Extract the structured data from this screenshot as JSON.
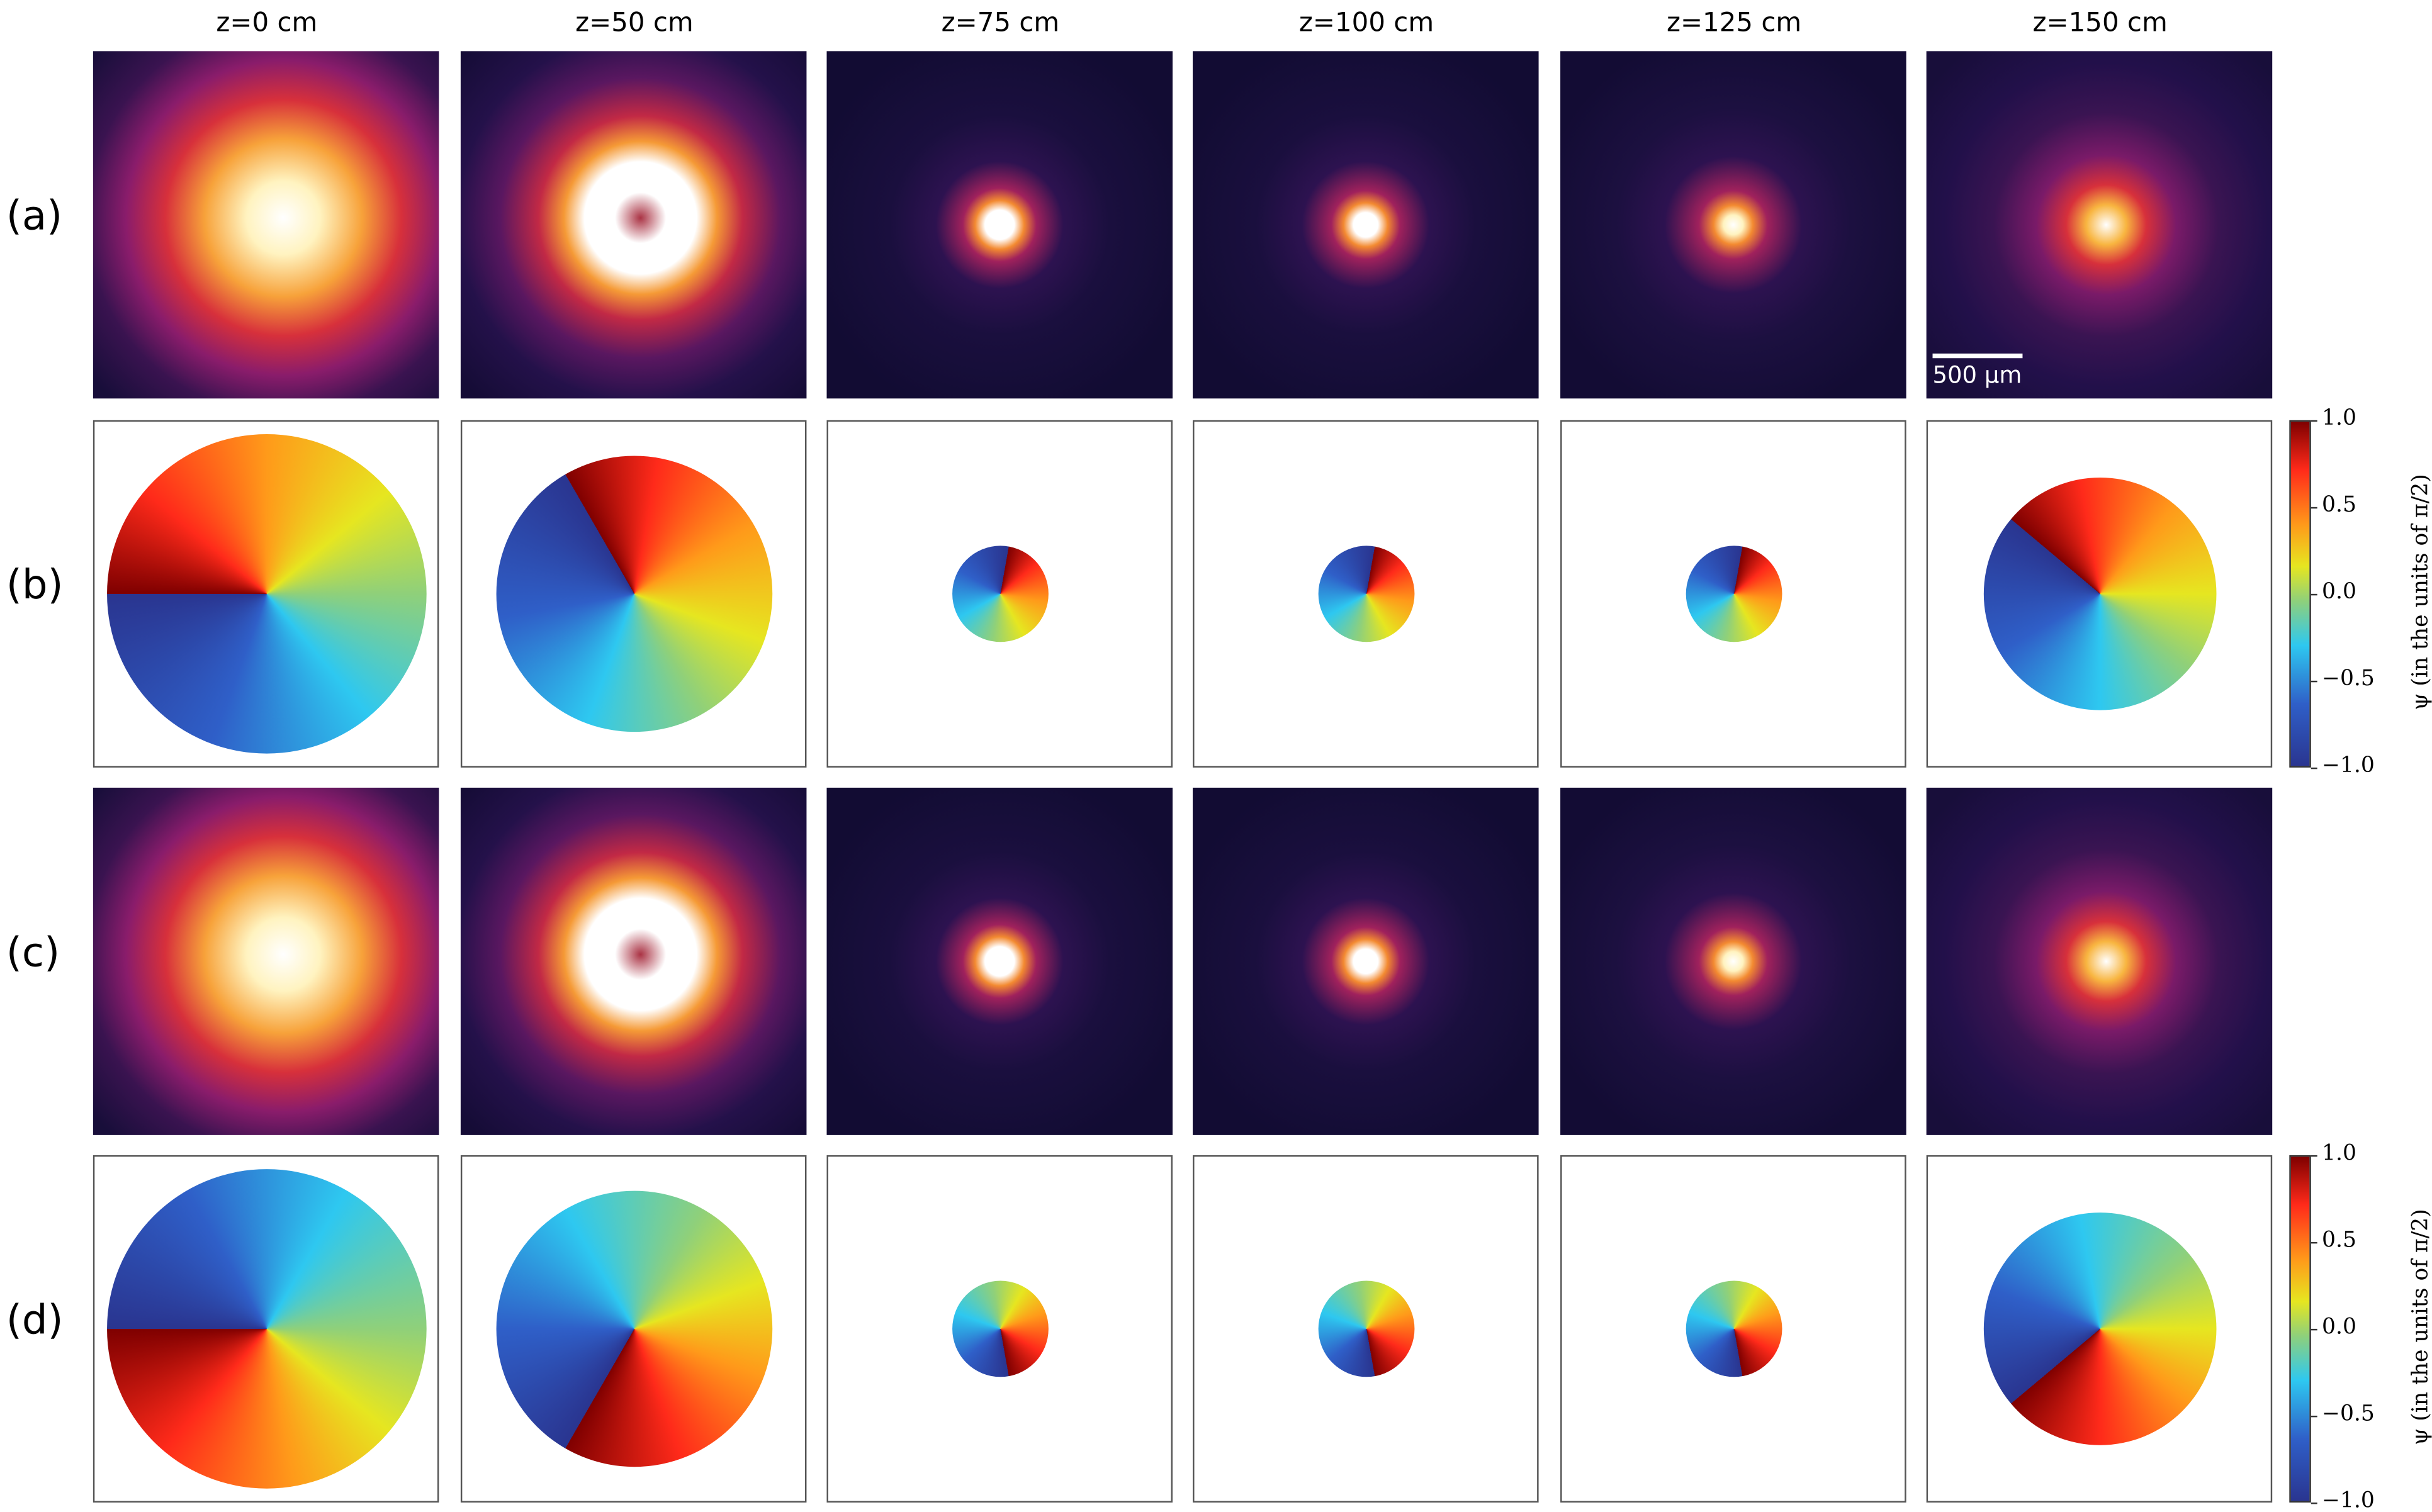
{
  "columns": [
    "z=0 cm",
    "z=50 cm",
    "z=75 cm",
    "z=100 cm",
    "z=125 cm",
    "z=150 cm"
  ],
  "rows": [
    "(a)",
    "(b)",
    "(c)",
    "(d)"
  ],
  "scale_bar": "500 μm",
  "colorbars": [
    {
      "label": "ψ (in the units of π/2)",
      "lim": [
        -1,
        1
      ],
      "ticks": [
        {
          "value": 1,
          "label": "1.0"
        },
        {
          "value": 0.5,
          "label": "0.5"
        },
        {
          "value": 0,
          "label": "0.0"
        },
        {
          "value": -0.5,
          "label": "−0.5"
        },
        {
          "value": -1,
          "label": "−1.0"
        }
      ]
    },
    {
      "label": "ψ (in the units of π/2)",
      "lim": [
        -1,
        1
      ],
      "ticks": [
        {
          "value": 1,
          "label": "1.0"
        },
        {
          "value": 0.5,
          "label": "0.5"
        },
        {
          "value": 0,
          "label": "0.0"
        },
        {
          "value": -0.5,
          "label": "−0.5"
        },
        {
          "value": -1,
          "label": "−1.0"
        }
      ]
    }
  ]
}
